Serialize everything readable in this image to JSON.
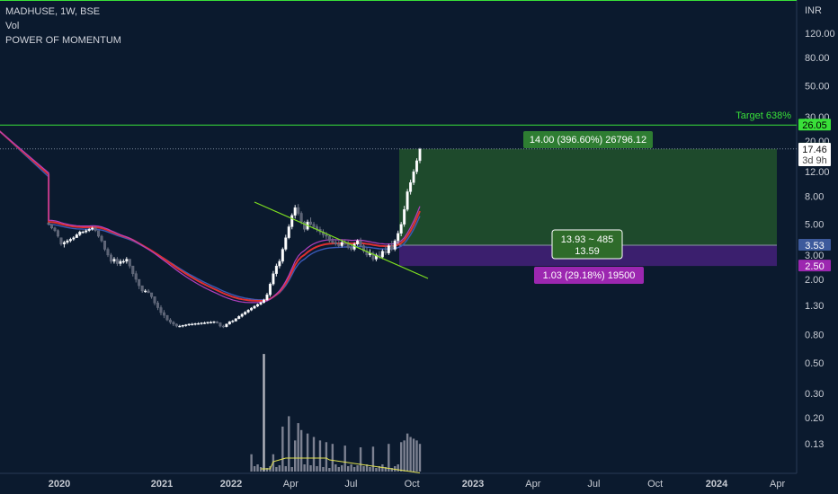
{
  "header": {
    "symbol_line": "MADHUSE, 1W, BSE",
    "vol_label": "Vol",
    "indicator_label": "POWER OF MOMENTUM"
  },
  "chart_data": {
    "type": "candlestick",
    "currency": "INR",
    "scale": "log",
    "ylim": [
      0.1,
      160
    ],
    "y_ticks": [
      "120.00",
      "80.00",
      "50.00",
      "30.00",
      "20.00",
      "12.00",
      "8.00",
      "5.00",
      "3.00",
      "2.00",
      "1.30",
      "0.80",
      "0.50",
      "0.30",
      "0.20",
      "0.13"
    ],
    "y_tick_values": [
      120,
      80,
      50,
      30,
      20,
      12,
      8,
      5,
      3,
      2,
      1.3,
      0.8,
      0.5,
      0.3,
      0.2,
      0.13
    ],
    "x_ticks": [
      "2020",
      "2021",
      "2022",
      "Apr",
      "Jul",
      "Oct",
      "2023",
      "Apr",
      "Jul",
      "Oct",
      "2024",
      "Apr"
    ],
    "x_tick_dates": [
      "2020-01-01",
      "2021-01-01",
      "2022-01-01",
      "2022-04-01",
      "2022-07-01",
      "2022-10-01",
      "2023-01-01",
      "2023-04-01",
      "2023-07-01",
      "2023-10-01",
      "2024-01-01",
      "2024-04-01"
    ],
    "x_bold": [
      true,
      true,
      true,
      false,
      false,
      false,
      true,
      false,
      false,
      false,
      true,
      false
    ],
    "price_tags": [
      {
        "label": "26.05",
        "value": 26.05,
        "bg": "#39e039",
        "fg": "#000000"
      },
      {
        "label": "17.53",
        "value": 17.53,
        "bg": "#1f4a2a",
        "fg": "#ffffff"
      },
      {
        "label": "17.46",
        "value": 17.46,
        "bg": "#ffffff",
        "fg": "#111111",
        "sub": "3d 9h"
      },
      {
        "label": "3.53",
        "value": 3.53,
        "bg": "#3d5a9c",
        "fg": "#ffffff"
      },
      {
        "label": "2.50",
        "value": 2.5,
        "bg": "#9c27b0",
        "fg": "#ffffff"
      }
    ],
    "target": {
      "label": "Target 638%",
      "value": 26.05,
      "color": "#39e039"
    },
    "long_position": {
      "entry": 3.53,
      "target": 17.53,
      "stop": 2.5,
      "start_date": "2022-08-29",
      "end_date": "2024-04-01",
      "profit_label": "14.00 (396.60%) 26796.12",
      "loss_label": "1.03 (29.18%) 19500",
      "center_label_1": "13.93 ~ 485",
      "center_label_2": "13.59"
    },
    "trendline": {
      "start": [
        "2022-02-28",
        6.8
      ],
      "end": [
        "2022-10-17",
        1.75
      ],
      "color": "#7fe020"
    },
    "candles": [
      [
        "2019-10-07",
        5.1,
        5.2,
        4.9,
        5.0
      ],
      [
        "2019-10-14",
        5.0,
        5.0,
        4.6,
        4.7
      ],
      [
        "2019-10-21",
        4.7,
        4.8,
        4.4,
        4.5
      ],
      [
        "2019-10-28",
        4.5,
        4.6,
        4.0,
        4.1
      ],
      [
        "2019-11-04",
        4.0,
        4.0,
        3.5,
        3.6
      ],
      [
        "2019-11-11",
        3.6,
        3.8,
        3.4,
        3.7
      ],
      [
        "2019-11-18",
        3.7,
        3.9,
        3.6,
        3.8
      ],
      [
        "2019-11-25",
        3.8,
        4.0,
        3.7,
        3.9
      ],
      [
        "2019-12-02",
        3.9,
        4.1,
        3.8,
        4.0
      ],
      [
        "2019-12-09",
        4.0,
        4.3,
        4.0,
        4.2
      ],
      [
        "2019-12-16",
        4.2,
        4.5,
        4.1,
        4.4
      ],
      [
        "2019-12-23",
        4.4,
        4.5,
        4.3,
        4.4
      ],
      [
        "2019-12-30",
        4.4,
        4.6,
        4.3,
        4.5
      ],
      [
        "2020-01-06",
        4.5,
        4.7,
        4.4,
        4.6
      ],
      [
        "2020-01-13",
        4.6,
        4.8,
        4.5,
        4.7
      ],
      [
        "2020-01-20",
        4.7,
        4.8,
        4.4,
        4.5
      ],
      [
        "2020-01-27",
        4.5,
        4.5,
        4.0,
        4.1
      ],
      [
        "2020-02-03",
        4.1,
        4.2,
        3.7,
        3.8
      ],
      [
        "2020-02-10",
        3.8,
        3.8,
        3.2,
        3.3
      ],
      [
        "2020-02-17",
        3.3,
        3.4,
        2.9,
        3.0
      ],
      [
        "2020-02-24",
        3.0,
        3.1,
        2.6,
        2.7
      ],
      [
        "2020-03-02",
        2.7,
        2.9,
        2.6,
        2.8
      ],
      [
        "2020-03-09",
        2.8,
        2.9,
        2.5,
        2.6
      ],
      [
        "2020-03-16",
        2.6,
        2.8,
        2.5,
        2.7
      ],
      [
        "2020-03-23",
        2.7,
        2.8,
        2.6,
        2.7
      ],
      [
        "2020-03-30",
        2.7,
        2.9,
        2.6,
        2.8
      ],
      [
        "2020-04-06",
        2.8,
        2.8,
        2.4,
        2.5
      ],
      [
        "2020-04-13",
        2.5,
        2.5,
        2.1,
        2.2
      ],
      [
        "2020-04-20",
        2.2,
        2.3,
        1.9,
        2.0
      ],
      [
        "2020-04-27",
        2.0,
        2.0,
        1.7,
        1.8
      ],
      [
        "2020-05-04",
        1.8,
        1.8,
        1.6,
        1.65
      ],
      [
        "2020-05-11",
        1.65,
        1.7,
        1.6,
        1.65
      ],
      [
        "2020-05-18",
        1.65,
        1.7,
        1.6,
        1.6
      ],
      [
        "2020-05-25",
        1.6,
        1.6,
        1.45,
        1.5
      ],
      [
        "2020-06-01",
        1.5,
        1.5,
        1.3,
        1.35
      ],
      [
        "2020-06-08",
        1.35,
        1.4,
        1.2,
        1.25
      ],
      [
        "2020-06-15",
        1.25,
        1.3,
        1.1,
        1.15
      ],
      [
        "2020-06-22",
        1.15,
        1.2,
        1.05,
        1.1
      ],
      [
        "2020-06-29",
        1.1,
        1.1,
        1.0,
        1.02
      ],
      [
        "2020-07-06",
        1.02,
        1.05,
        0.95,
        0.98
      ],
      [
        "2020-07-13",
        0.98,
        1.0,
        0.92,
        0.95
      ],
      [
        "2020-07-20",
        0.95,
        0.96,
        0.9,
        0.92
      ],
      [
        "2020-07-27",
        0.92,
        0.94,
        0.9,
        0.92
      ],
      [
        "2020-08-03",
        0.92,
        0.94,
        0.9,
        0.93
      ],
      [
        "2020-08-10",
        0.93,
        0.95,
        0.91,
        0.94
      ],
      [
        "2020-08-17",
        0.94,
        0.96,
        0.92,
        0.95
      ],
      [
        "2020-08-24",
        0.95,
        0.97,
        0.93,
        0.95
      ],
      [
        "2020-08-31",
        0.95,
        0.97,
        0.93,
        0.96
      ],
      [
        "2020-09-07",
        0.96,
        0.98,
        0.94,
        0.96
      ],
      [
        "2020-09-14",
        0.96,
        0.98,
        0.94,
        0.97
      ],
      [
        "2020-09-21",
        0.97,
        0.99,
        0.95,
        0.97
      ],
      [
        "2020-09-28",
        0.97,
        0.99,
        0.95,
        0.98
      ],
      [
        "2020-10-05",
        0.98,
        1.0,
        0.96,
        0.98
      ],
      [
        "2020-10-12",
        0.98,
        1.0,
        0.96,
        0.99
      ],
      [
        "2020-10-19",
        0.99,
        1.0,
        0.96,
        0.97
      ],
      [
        "2020-10-26",
        0.97,
        0.98,
        0.9,
        0.92
      ],
      [
        "2020-11-02",
        0.92,
        0.94,
        0.89,
        0.91
      ],
      [
        "2020-11-09",
        0.91,
        0.96,
        0.9,
        0.95
      ],
      [
        "2020-11-16",
        0.95,
        1.0,
        0.94,
        0.99
      ],
      [
        "2020-11-23",
        0.99,
        1.02,
        0.97,
        1.0
      ],
      [
        "2020-11-30",
        1.0,
        1.05,
        0.99,
        1.04
      ],
      [
        "2020-12-07",
        1.04,
        1.1,
        1.03,
        1.08
      ],
      [
        "2020-12-14",
        1.08,
        1.14,
        1.06,
        1.12
      ],
      [
        "2020-12-21",
        1.12,
        1.18,
        1.1,
        1.16
      ],
      [
        "2020-12-28",
        1.16,
        1.22,
        1.14,
        1.2
      ],
      [
        "2021-01-04",
        1.2,
        1.26,
        1.18,
        1.24
      ],
      [
        "2021-01-11",
        1.24,
        1.3,
        1.22,
        1.28
      ],
      [
        "2021-01-18",
        1.28,
        1.34,
        1.26,
        1.32
      ],
      [
        "2021-01-25",
        1.32,
        1.38,
        1.3,
        1.36
      ],
      [
        "2021-02-01",
        1.36,
        1.45,
        1.34,
        1.42
      ],
      [
        "2021-02-08",
        1.42,
        1.6,
        1.4,
        1.55
      ],
      [
        "2021-02-15",
        1.55,
        1.9,
        1.5,
        1.85
      ],
      [
        "2021-02-22",
        1.85,
        2.3,
        1.8,
        2.2
      ],
      [
        "2021-03-01",
        2.2,
        2.6,
        2.1,
        2.5
      ],
      [
        "2021-03-08",
        2.5,
        2.8,
        2.4,
        2.7
      ],
      [
        "2021-03-15",
        2.7,
        3.4,
        2.6,
        3.3
      ],
      [
        "2021-03-22",
        3.3,
        4.2,
        3.2,
        4.0
      ],
      [
        "2021-03-29",
        4.0,
        5.0,
        3.9,
        4.8
      ],
      [
        "2021-04-05",
        4.8,
        6.0,
        4.6,
        5.8
      ],
      [
        "2021-04-12",
        5.8,
        6.9,
        5.5,
        6.6
      ],
      [
        "2021-04-19",
        6.6,
        7.0,
        5.8,
        6.0
      ],
      [
        "2021-04-26",
        6.0,
        6.2,
        5.0,
        5.2
      ],
      [
        "2021-05-03",
        5.2,
        5.3,
        4.4,
        4.6
      ],
      [
        "2021-05-10",
        4.6,
        5.4,
        4.5,
        5.2
      ],
      [
        "2021-05-17",
        5.2,
        5.6,
        4.9,
        5.0
      ],
      [
        "2021-05-24",
        5.0,
        5.2,
        4.6,
        4.8
      ],
      [
        "2021-05-31",
        4.8,
        5.0,
        4.4,
        4.6
      ],
      [
        "2021-06-07",
        4.6,
        4.8,
        4.2,
        4.4
      ],
      [
        "2021-06-14",
        4.4,
        4.6,
        4.0,
        4.2
      ],
      [
        "2021-06-21",
        4.2,
        4.4,
        3.9,
        4.1
      ],
      [
        "2021-06-28",
        4.1,
        4.2,
        3.7,
        3.8
      ],
      [
        "2021-07-05",
        3.8,
        4.0,
        3.6,
        3.7
      ],
      [
        "2021-07-12",
        3.7,
        3.9,
        3.5,
        3.6
      ],
      [
        "2021-07-19",
        3.6,
        3.8,
        3.4,
        3.5
      ],
      [
        "2021-07-26",
        3.5,
        3.8,
        3.4,
        3.7
      ],
      [
        "2021-08-02",
        3.7,
        3.9,
        3.5,
        3.6
      ],
      [
        "2021-08-09",
        3.6,
        3.8,
        3.3,
        3.4
      ],
      [
        "2021-08-16",
        3.4,
        3.6,
        3.2,
        3.3
      ],
      [
        "2021-08-23",
        3.3,
        3.7,
        3.2,
        3.6
      ],
      [
        "2021-08-30",
        3.6,
        3.9,
        3.5,
        3.8
      ],
      [
        "2021-09-06",
        3.8,
        4.0,
        3.4,
        3.5
      ],
      [
        "2021-09-13",
        3.5,
        3.6,
        3.1,
        3.2
      ],
      [
        "2021-09-20",
        3.2,
        3.4,
        2.9,
        3.0
      ],
      [
        "2021-09-27",
        3.0,
        3.3,
        2.9,
        3.1
      ],
      [
        "2021-10-04",
        3.1,
        3.2,
        2.7,
        2.8
      ],
      [
        "2021-10-11",
        2.8,
        3.1,
        2.7,
        3.0
      ],
      [
        "2021-10-18",
        3.0,
        3.2,
        2.8,
        2.9
      ],
      [
        "2021-10-25",
        2.9,
        3.3,
        2.8,
        3.2
      ],
      [
        "2021-11-01",
        3.2,
        3.5,
        3.0,
        3.1
      ],
      [
        "2021-11-08",
        3.1,
        3.6,
        3.0,
        3.5
      ],
      [
        "2021-11-15",
        3.5,
        3.8,
        3.2,
        3.3
      ],
      [
        "2021-11-22",
        3.3,
        3.9,
        3.2,
        3.8
      ],
      [
        "2021-11-29",
        3.8,
        4.5,
        3.6,
        4.3
      ],
      [
        "2021-12-06",
        4.3,
        5.2,
        4.1,
        5.0
      ],
      [
        "2021-12-13",
        5.0,
        6.8,
        4.8,
        6.4
      ],
      [
        "2021-12-20",
        6.4,
        9.0,
        6.2,
        8.6
      ],
      [
        "2021-12-27",
        8.6,
        10.5,
        8.2,
        10.0
      ],
      [
        "2022-01-03",
        10.0,
        12.5,
        9.6,
        12.0
      ],
      [
        "2022-01-10",
        12.0,
        15.0,
        11.5,
        14.4
      ],
      [
        "2022-01-17",
        14.4,
        17.8,
        13.8,
        17.46
      ]
    ],
    "volume": [
      [
        "2021-01-04",
        0.05
      ],
      [
        "2021-02-01",
        0.34
      ],
      [
        "2021-02-22",
        0.05
      ],
      [
        "2021-03-15",
        0.13
      ],
      [
        "2021-03-29",
        0.16
      ],
      [
        "2021-04-12",
        0.09
      ],
      [
        "2021-04-19",
        0.14
      ],
      [
        "2021-04-26",
        0.12
      ],
      [
        "2021-05-10",
        0.11
      ],
      [
        "2021-05-24",
        0.1
      ],
      [
        "2021-06-07",
        0.09
      ],
      [
        "2021-06-21",
        0.085
      ],
      [
        "2021-07-05",
        0.08
      ],
      [
        "2021-08-02",
        0.075
      ],
      [
        "2021-09-06",
        0.07
      ],
      [
        "2021-10-04",
        0.072
      ],
      [
        "2021-11-08",
        0.08
      ],
      [
        "2021-12-06",
        0.085
      ],
      [
        "2021-12-13",
        0.09
      ],
      [
        "2021-12-20",
        0.11
      ],
      [
        "2021-12-27",
        0.1
      ],
      [
        "2022-01-03",
        0.095
      ],
      [
        "2022-01-10",
        0.09
      ],
      [
        "2022-01-17",
        0.08
      ]
    ]
  }
}
